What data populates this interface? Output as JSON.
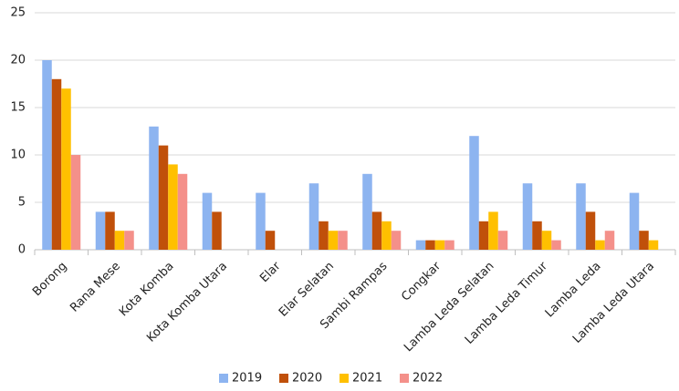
{
  "chart_data": {
    "type": "bar",
    "categories": [
      "Borong",
      "Rana Mese",
      "Kota Komba",
      "Kota Komba Utara",
      "Elar",
      "Elar Selatan",
      "Sambi Rampas",
      "Congkar",
      "Lamba Leda Selatan",
      "Lamba Leda Timur",
      "Lamba Leda",
      "Lamba Leda Utara"
    ],
    "series": [
      {
        "name": "2019",
        "color": "#8db4f0",
        "values": [
          20,
          4,
          13,
          6,
          6,
          7,
          8,
          1,
          12,
          7,
          7,
          6
        ]
      },
      {
        "name": "2020",
        "color": "#c0500a",
        "values": [
          18,
          4,
          11,
          4,
          2,
          3,
          4,
          1,
          3,
          3,
          4,
          2
        ]
      },
      {
        "name": "2021",
        "color": "#ffc000",
        "values": [
          17,
          2,
          9,
          null,
          null,
          2,
          3,
          1,
          4,
          2,
          1,
          1
        ]
      },
      {
        "name": "2022",
        "color": "#f4908a",
        "values": [
          10,
          2,
          8,
          null,
          null,
          2,
          2,
          1,
          2,
          1,
          2,
          null
        ]
      }
    ],
    "ylim": [
      0,
      25
    ],
    "yticks": [
      0,
      5,
      10,
      15,
      20,
      25
    ],
    "grid": true,
    "legend": "bottom"
  }
}
